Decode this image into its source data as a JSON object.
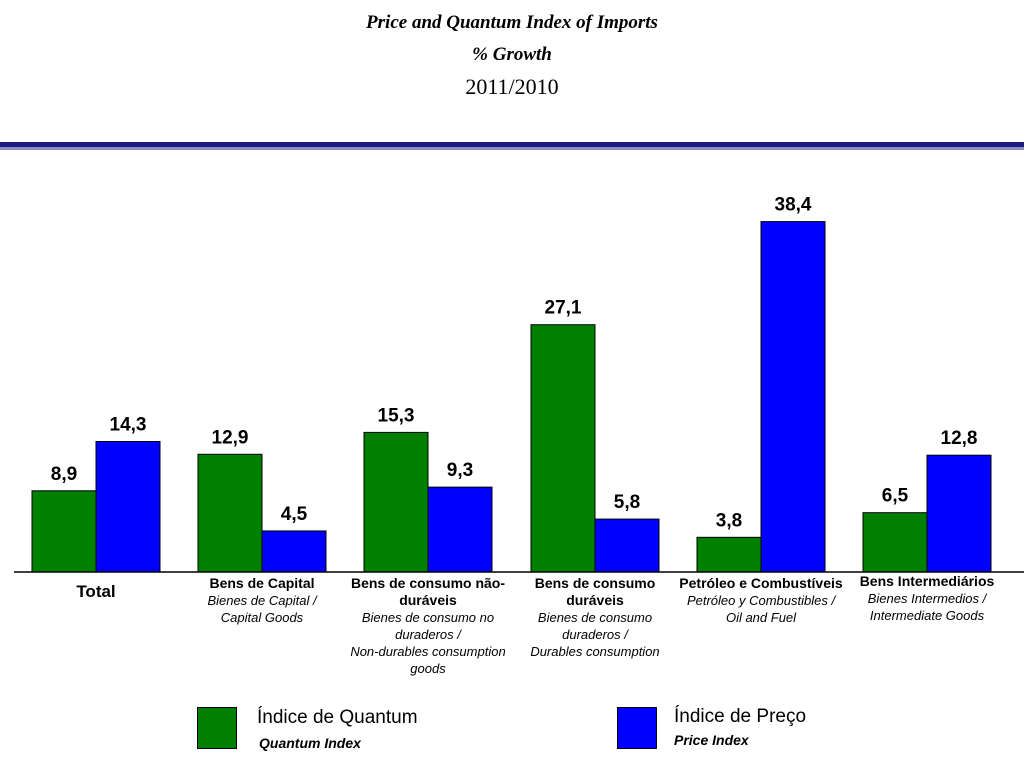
{
  "header": {
    "title": "Price and Quantum Index of Imports",
    "subtitle": "% Growth",
    "period": "2011/2010"
  },
  "chart_data": {
    "type": "bar",
    "categories": [
      {
        "pt": "Total",
        "es": "",
        "en": ""
      },
      {
        "pt": "Bens de Capital",
        "es": "Bienes de Capital /",
        "en": "Capital Goods"
      },
      {
        "pt": "Bens de consumo não-duráveis",
        "es": "Bienes de consumo no duraderos /",
        "en": "Non-durables consumption goods"
      },
      {
        "pt": "Bens de consumo duráveis",
        "es": "Bienes de consumo duraderos /",
        "en": "Durables consumption"
      },
      {
        "pt": "Petróleo e Combustíveis",
        "es": "Petróleo y Combustibles /",
        "en": "Oil and Fuel"
      },
      {
        "pt": "Bens Intermediários",
        "es": "Bienes Intermedios /",
        "en": "Intermediate Goods"
      }
    ],
    "series": [
      {
        "name": "Índice de Quantum",
        "subname": "Quantum Index",
        "color": "#008000",
        "values": [
          8.9,
          12.9,
          15.3,
          27.1,
          3.8,
          6.5
        ],
        "labels": [
          "8,9",
          "12,9",
          "15,3",
          "27,1",
          "3,8",
          "6,5"
        ]
      },
      {
        "name": "Índice de Preço",
        "subname": "Price Index",
        "color": "#0000ff",
        "values": [
          14.3,
          4.5,
          9.3,
          5.8,
          38.4,
          12.8
        ],
        "labels": [
          "14,3",
          "4,5",
          "9,3",
          "5,8",
          "38,4",
          "12,8"
        ]
      }
    ],
    "ylim": [
      0,
      40
    ],
    "grid": false,
    "legend_position": "bottom"
  }
}
